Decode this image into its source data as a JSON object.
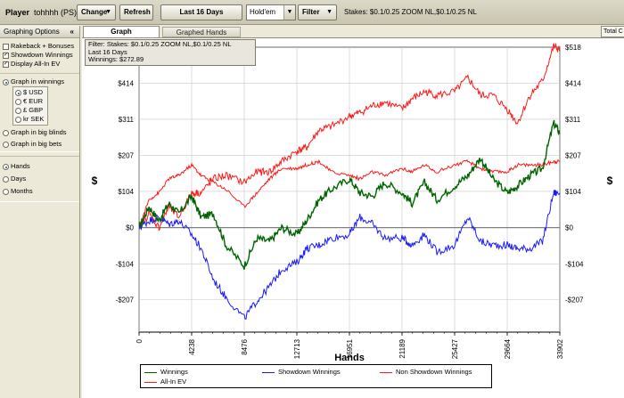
{
  "toolbar": {
    "player_label": "Player",
    "player_name": "tohhhh (PS)",
    "change_label": "Change",
    "refresh_label": "Refresh",
    "date_range_label": "Last  16 Days",
    "game_select_value": "Hold'em",
    "filter_label": "Filter",
    "stakes_text": "Stakes: $0.1/0.25 ZOOM NL,$0.1/0.25 NL"
  },
  "left_panel": {
    "header": "Graphing Options",
    "collapse_glyph": "«",
    "checkboxes": [
      {
        "label": "Rakeback + Bonuses",
        "checked": false
      },
      {
        "label": "Showdown Winnings",
        "checked": true
      },
      {
        "label": "Display All-In EV",
        "checked": true
      }
    ],
    "graph_in_winnings": {
      "label": "Graph in winnings",
      "selected": true
    },
    "currencies": [
      {
        "label": "$ USD",
        "selected": true
      },
      {
        "label": "€ EUR",
        "selected": false
      },
      {
        "label": "£ GBP",
        "selected": false
      },
      {
        "label": "kr SEK",
        "selected": false
      }
    ],
    "graph_in_big_blinds": {
      "label": "Graph in big blinds",
      "selected": false
    },
    "graph_in_big_bets": {
      "label": "Graph in big bets",
      "selected": false
    },
    "x_axis_modes": [
      {
        "label": "Hands",
        "selected": true
      },
      {
        "label": "Days",
        "selected": false
      },
      {
        "label": "Months",
        "selected": false
      }
    ]
  },
  "tabs": {
    "graph": "Graph",
    "graphed_hands": "Graphed Hands",
    "total": "Total C"
  },
  "filter_box": {
    "line1": "Filter: Stakes: $0.1/0.25 ZOOM NL,$0.1/0.25 NL",
    "line2": "Last  16 Days",
    "line3": "Winnings: $272.89"
  },
  "chart_data": {
    "type": "line",
    "xlabel": "Hands",
    "ylabel": "$",
    "x_ticks": [
      0,
      4238,
      8476,
      12713,
      16951,
      21189,
      25427,
      29664,
      33902
    ],
    "y_ticks": [
      -207,
      -104,
      0,
      104,
      207,
      311,
      414,
      518
    ],
    "y_tick_labels": [
      "-$207",
      "-$104",
      "$0",
      "$104",
      "$207",
      "$311",
      "$414",
      "$518"
    ],
    "xlim": [
      0,
      33902
    ],
    "ylim": [
      -300,
      518
    ],
    "grid": true,
    "legend_position": "bottom",
    "series": [
      {
        "name": "Winnings",
        "color": "#006400",
        "x": [
          0,
          800,
          1600,
          2400,
          3200,
          4238,
          5000,
          6000,
          7000,
          8476,
          9500,
          10500,
          11500,
          12713,
          13500,
          14500,
          15500,
          16951,
          17800,
          18800,
          19800,
          21189,
          22000,
          23000,
          24000,
          25427,
          26500,
          27500,
          28500,
          29664,
          30500,
          31500,
          32500,
          33400,
          33902
        ],
        "y": [
          0,
          60,
          20,
          70,
          40,
          90,
          30,
          40,
          -50,
          -110,
          -30,
          -40,
          0,
          -20,
          20,
          80,
          110,
          140,
          100,
          90,
          130,
          100,
          70,
          130,
          80,
          120,
          150,
          200,
          140,
          100,
          120,
          150,
          170,
          300,
          273
        ]
      },
      {
        "name": "Showdown Winnings",
        "color": "#1a1aff",
        "x": [
          0,
          800,
          1600,
          2400,
          3200,
          4238,
          5000,
          6000,
          7000,
          8476,
          9500,
          10500,
          11500,
          12713,
          13500,
          14500,
          15500,
          16951,
          17800,
          18800,
          19800,
          21189,
          22000,
          23000,
          24000,
          25427,
          26500,
          27500,
          28500,
          29664,
          30500,
          31500,
          32500,
          33400,
          33902
        ],
        "y": [
          0,
          20,
          30,
          10,
          20,
          -20,
          -60,
          -150,
          -200,
          -260,
          -210,
          -170,
          -120,
          -100,
          -60,
          -50,
          -30,
          -20,
          30,
          10,
          -30,
          -30,
          -50,
          -20,
          -70,
          -50,
          30,
          -40,
          -50,
          -50,
          -60,
          -60,
          -40,
          100,
          100
        ]
      },
      {
        "name": "Non Showdown Winnings",
        "color": "#ff1a1a",
        "x": [
          0,
          800,
          1600,
          2400,
          3200,
          4238,
          5000,
          6000,
          7000,
          8476,
          9500,
          10500,
          11500,
          12713,
          13500,
          14500,
          15500,
          16951,
          17800,
          18800,
          19800,
          21189,
          22000,
          23000,
          24000,
          25427,
          26500,
          27500,
          28500,
          29664,
          30500,
          31500,
          32500,
          33400,
          33902
        ],
        "y": [
          0,
          40,
          0,
          60,
          30,
          100,
          100,
          140,
          150,
          130,
          160,
          160,
          190,
          220,
          230,
          280,
          290,
          320,
          330,
          350,
          360,
          340,
          370,
          390,
          380,
          390,
          430,
          380,
          380,
          340,
          300,
          380,
          420,
          520,
          510
        ]
      },
      {
        "name": "All-In EV",
        "color": "#ff1a1a",
        "x": [
          0,
          800,
          1600,
          2400,
          3200,
          4238,
          5000,
          6000,
          7000,
          8476,
          9500,
          10500,
          11500,
          12713,
          13500,
          14500,
          15500,
          16951,
          17800,
          18800,
          19800,
          21189,
          22000,
          23000,
          24000,
          25427,
          26500,
          27500,
          28500,
          29664,
          30500,
          31500,
          32500,
          33400,
          33902
        ],
        "y": [
          0,
          80,
          100,
          140,
          150,
          180,
          150,
          130,
          110,
          60,
          100,
          140,
          170,
          170,
          180,
          190,
          160,
          150,
          140,
          160,
          150,
          170,
          160,
          180,
          160,
          180,
          190,
          170,
          160,
          160,
          180,
          180,
          180,
          190,
          190
        ]
      }
    ]
  }
}
